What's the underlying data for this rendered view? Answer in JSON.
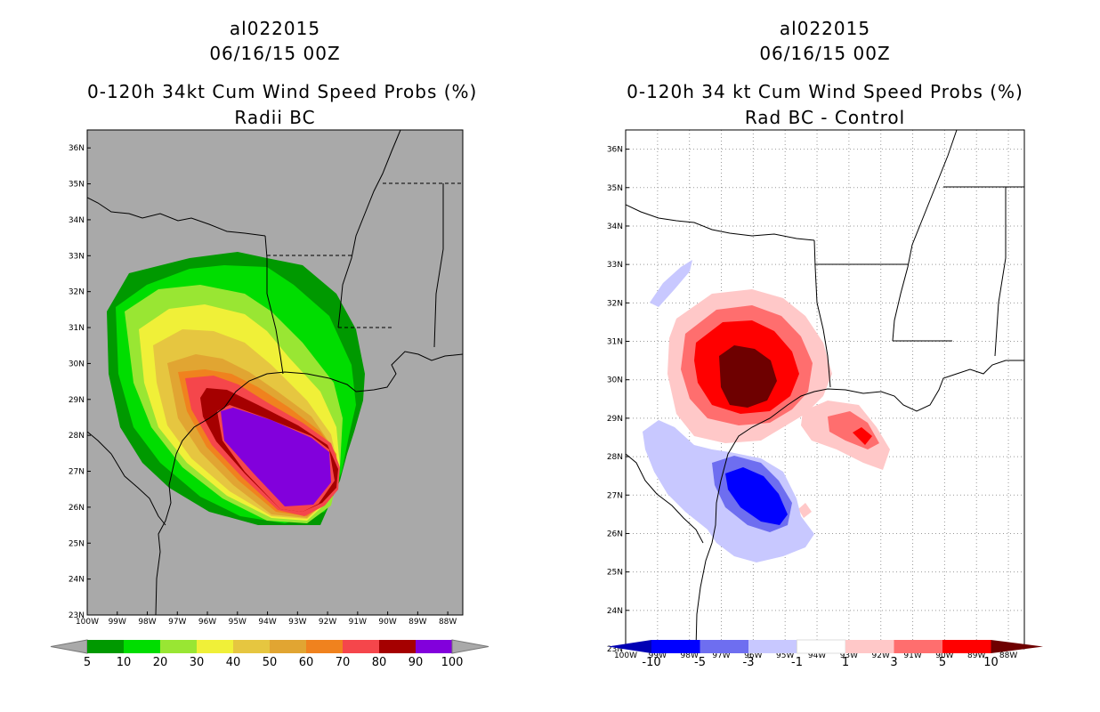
{
  "chart_data": [
    {
      "type": "heatmap",
      "title_line1": "al022015",
      "title_line2": "06/16/15 00Z",
      "title_line3": "0-120h 34kt Cum Wind Speed Probs (%)",
      "title_line4": "Radii BC",
      "xlim": [
        -100,
        -87.5
      ],
      "ylim": [
        23,
        36.5
      ],
      "x_ticks": [
        "100W",
        "99W",
        "98W",
        "97W",
        "96W",
        "95W",
        "94W",
        "93W",
        "92W",
        "91W",
        "90W",
        "89W",
        "88W"
      ],
      "y_ticks": [
        "23N",
        "24N",
        "25N",
        "26N",
        "27N",
        "28N",
        "29N",
        "30N",
        "31N",
        "32N",
        "33N",
        "34N",
        "35N",
        "36N"
      ],
      "colorbar_labels": [
        "5",
        "10",
        "20",
        "30",
        "40",
        "50",
        "60",
        "70",
        "80",
        "90",
        "100"
      ],
      "levels": [
        5,
        10,
        20,
        30,
        40,
        50,
        60,
        70,
        80,
        90,
        100
      ],
      "colors": [
        "#009900",
        "#00dd00",
        "#99e633",
        "#f0f038",
        "#e6c640",
        "#e1a532",
        "#f0821e",
        "#f5464b",
        "#a50000",
        "#8200dc"
      ],
      "background": "#a9a9a9"
    },
    {
      "type": "heatmap",
      "title_line1": "al022015",
      "title_line2": "06/16/15 00Z",
      "title_line3": "0-120h 34 kt Cum Wind Speed Probs (%)",
      "title_line4": "Rad BC - Control",
      "xlim": [
        -100,
        -87.5
      ],
      "ylim": [
        23,
        36.5
      ],
      "x_ticks": [
        "100W",
        "99W",
        "98W",
        "97W",
        "96W",
        "95W",
        "94W",
        "93W",
        "92W",
        "91W",
        "90W",
        "89W",
        "88W"
      ],
      "y_ticks": [
        "23N",
        "24N",
        "25N",
        "26N",
        "27N",
        "28N",
        "29N",
        "30N",
        "31N",
        "32N",
        "33N",
        "34N",
        "35N",
        "36N"
      ],
      "colorbar_labels": [
        "-10",
        "-5",
        "-3",
        "-1",
        "1",
        "3",
        "5",
        "10"
      ],
      "levels": [
        -10,
        -5,
        -3,
        -1,
        1,
        3,
        5,
        10
      ],
      "colors": [
        "#0000b4",
        "#0000ff",
        "#6e6ef0",
        "#c8c8ff",
        "#ffffff",
        "#ffc8c8",
        "#ff6e6e",
        "#ff0000",
        "#6e0000"
      ],
      "background": "#ffffff"
    }
  ]
}
